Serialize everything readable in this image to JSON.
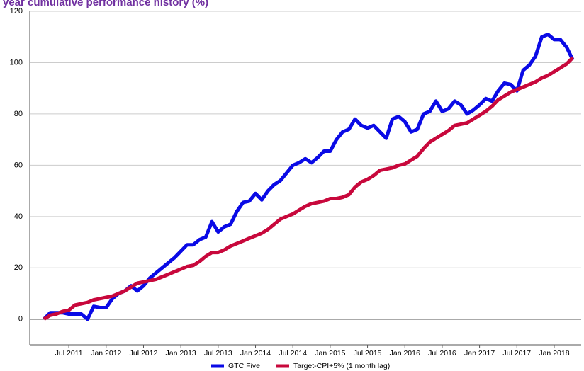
{
  "chart_data": {
    "type": "line",
    "title": "year cumulative performance history (%)",
    "categories": [
      null,
      null,
      null,
      null,
      "Jul 2011",
      null,
      null,
      null,
      null,
      null,
      "Jan 2012",
      null,
      null,
      null,
      null,
      null,
      "Jul 2012",
      null,
      null,
      null,
      null,
      null,
      "Jan 2013",
      null,
      null,
      null,
      null,
      null,
      "Jul 2013",
      null,
      null,
      null,
      null,
      null,
      "Jan 2014",
      null,
      null,
      null,
      null,
      null,
      "Jul 2014",
      null,
      null,
      null,
      null,
      null,
      "Jan 2015",
      null,
      null,
      null,
      null,
      null,
      "Jul 2015",
      null,
      null,
      null,
      null,
      null,
      "Jan 2016",
      null,
      null,
      null,
      null,
      null,
      "Jul 2016",
      null,
      null,
      null,
      null,
      null,
      "Jan 2017",
      null,
      null,
      null,
      null,
      null,
      "Jul 2017",
      null,
      null,
      null,
      null,
      null,
      "Jan 2018",
      null,
      null,
      null
    ],
    "series": [
      {
        "name": "GTC Five",
        "color": "#0a0ae6",
        "values": [
          0,
          2.5,
          2.5,
          2.5,
          2,
          2,
          2,
          0,
          5,
          4.5,
          4.5,
          8,
          10,
          11,
          13,
          11,
          13,
          16,
          18,
          20,
          22,
          24,
          26.5,
          29,
          29,
          31,
          32,
          38,
          34,
          36,
          37,
          42,
          45.5,
          46,
          49,
          46.5,
          50,
          52.5,
          54,
          57,
          60,
          61,
          62.5,
          61,
          63,
          65.5,
          65.5,
          70,
          73,
          74,
          78,
          75.5,
          74.5,
          75.5,
          73,
          70.5,
          78,
          79,
          77,
          73,
          74,
          80,
          81,
          85,
          81,
          82,
          85,
          83.5,
          80,
          81.5,
          83.5,
          86,
          85,
          89,
          92,
          91.5,
          89,
          97,
          99,
          102.5,
          110,
          111,
          109,
          109,
          106,
          101
        ]
      },
      {
        "name": "Target-CPI+5% (1 month lag)",
        "color": "#c8083c",
        "values": [
          0,
          1.5,
          2,
          3,
          3.5,
          5.5,
          6,
          6.5,
          7.5,
          8,
          8.5,
          9,
          10,
          11,
          12.5,
          14,
          14.5,
          15,
          15.5,
          16.5,
          17.5,
          18.5,
          19.5,
          20.5,
          21,
          22.5,
          24.5,
          26,
          26,
          27,
          28.5,
          29.5,
          30.5,
          31.5,
          32.5,
          33.5,
          35,
          37,
          39,
          40,
          41,
          42.5,
          44,
          45,
          45.5,
          46,
          47,
          47,
          47.5,
          48.5,
          51.5,
          53.5,
          54.5,
          56,
          58,
          58.5,
          59,
          60,
          60.5,
          62,
          63.5,
          66.5,
          69,
          70.5,
          72,
          73.5,
          75.5,
          76,
          76.5,
          78,
          79.5,
          81,
          83,
          85.5,
          87,
          88.5,
          89.5,
          90.5,
          91.5,
          92.5,
          94,
          95,
          96.5,
          98,
          99.5,
          102
        ]
      }
    ],
    "ylim": [
      -10,
      120
    ],
    "yticks": [
      0,
      20,
      40,
      60,
      80,
      100,
      120
    ],
    "grid": true,
    "legend": "bottom"
  }
}
